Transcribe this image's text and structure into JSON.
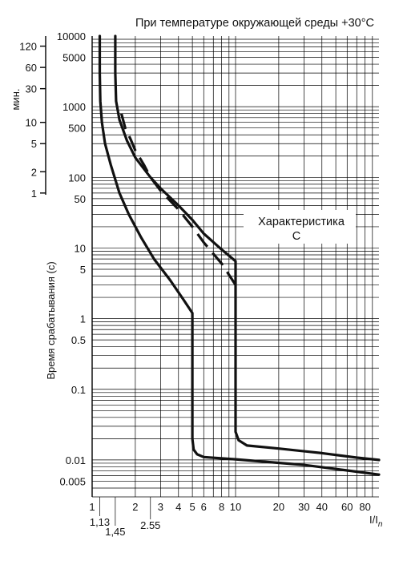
{
  "chart_data": {
    "type": "line",
    "title": "При температуре окружающей среды +30°C",
    "ylabel": "Время срабатывания (с)",
    "minutes_axis_label": "мин.",
    "xlabel": "I/I",
    "xlabel_sub": "n",
    "x_scale": "log",
    "y_scale": "log",
    "xlim": [
      1,
      100
    ],
    "ylim": [
      0.003,
      10000
    ],
    "grid": true,
    "x_ticks": [
      {
        "value": 1,
        "label": "1"
      },
      {
        "value": 2,
        "label": "2"
      },
      {
        "value": 3,
        "label": "3"
      },
      {
        "value": 4,
        "label": "4"
      },
      {
        "value": 5,
        "label": "5"
      },
      {
        "value": 6,
        "label": "6"
      },
      {
        "value": 8,
        "label": "8"
      },
      {
        "value": 10,
        "label": "10"
      },
      {
        "value": 20,
        "label": "20"
      },
      {
        "value": 30,
        "label": "30"
      },
      {
        "value": 40,
        "label": "40"
      },
      {
        "value": 60,
        "label": "60"
      },
      {
        "value": 80,
        "label": "80"
      }
    ],
    "x_ticks_extra": [
      {
        "value": 1.13,
        "label": "1,13"
      },
      {
        "value": 1.45,
        "label": "1,45"
      },
      {
        "value": 2.55,
        "label": "2.55"
      }
    ],
    "y_ticks": [
      {
        "value": 10000,
        "label": "10000"
      },
      {
        "value": 5000,
        "label": "5000"
      },
      {
        "value": 1000,
        "label": "1000"
      },
      {
        "value": 500,
        "label": "500"
      },
      {
        "value": 100,
        "label": "100"
      },
      {
        "value": 50,
        "label": "50"
      },
      {
        "value": 10,
        "label": "10"
      },
      {
        "value": 5,
        "label": "5"
      },
      {
        "value": 1,
        "label": "1"
      },
      {
        "value": 0.5,
        "label": "0.5"
      },
      {
        "value": 0.1,
        "label": "0.1"
      },
      {
        "value": 0.01,
        "label": "0.01"
      },
      {
        "value": 0.005,
        "label": "0.005"
      }
    ],
    "minute_ticks": [
      {
        "value": 120,
        "label": "120"
      },
      {
        "value": 60,
        "label": "60"
      },
      {
        "value": 30,
        "label": "30"
      },
      {
        "value": 10,
        "label": "10"
      },
      {
        "value": 5,
        "label": "5"
      },
      {
        "value": 2,
        "label": "2"
      },
      {
        "value": 1,
        "label": "1"
      }
    ],
    "annotation": {
      "line1": "Характеристика",
      "line2": "C"
    },
    "series": [
      {
        "style": "solid",
        "points": [
          [
            1.13,
            10000
          ],
          [
            1.13,
            3000
          ],
          [
            1.14,
            1200
          ],
          [
            1.17,
            600
          ],
          [
            1.23,
            300
          ],
          [
            1.35,
            150
          ],
          [
            1.55,
            60
          ],
          [
            1.8,
            30
          ],
          [
            2.2,
            14
          ],
          [
            2.7,
            7
          ],
          [
            3.5,
            3.5
          ],
          [
            4.3,
            1.9
          ],
          [
            5,
            1.2
          ],
          [
            5,
            0.6
          ],
          [
            5,
            0.2
          ],
          [
            5,
            0.05
          ],
          [
            5,
            0.02
          ],
          [
            5.1,
            0.014
          ],
          [
            5.4,
            0.012
          ],
          [
            6,
            0.011
          ],
          [
            10,
            0.0102
          ],
          [
            30,
            0.0085
          ],
          [
            60,
            0.0071
          ],
          [
            100,
            0.0062
          ]
        ]
      },
      {
        "style": "solid",
        "points": [
          [
            1.45,
            10000
          ],
          [
            1.45,
            3000
          ],
          [
            1.47,
            1200
          ],
          [
            1.55,
            650
          ],
          [
            1.75,
            330
          ],
          [
            2,
            190
          ],
          [
            2.55,
            100
          ],
          [
            3,
            70
          ],
          [
            4,
            40
          ],
          [
            5,
            25
          ],
          [
            6,
            16
          ],
          [
            8,
            9.5
          ],
          [
            10,
            6.5
          ],
          [
            10,
            3
          ],
          [
            10,
            1
          ],
          [
            10,
            0.3
          ],
          [
            10,
            0.05
          ],
          [
            10,
            0.025
          ],
          [
            10.5,
            0.019
          ],
          [
            12,
            0.016
          ],
          [
            20,
            0.0145
          ],
          [
            40,
            0.0125
          ],
          [
            70,
            0.0108
          ],
          [
            100,
            0.01
          ]
        ]
      },
      {
        "style": "dashed",
        "points": [
          [
            1.6,
            800
          ],
          [
            1.7,
            500
          ],
          [
            1.85,
            350
          ],
          [
            2,
            240
          ],
          [
            2.3,
            150
          ],
          [
            2.55,
            100
          ],
          [
            3,
            65
          ],
          [
            4,
            35
          ],
          [
            5,
            20
          ],
          [
            6,
            12
          ],
          [
            8,
            6
          ],
          [
            10,
            3
          ]
        ]
      }
    ]
  }
}
